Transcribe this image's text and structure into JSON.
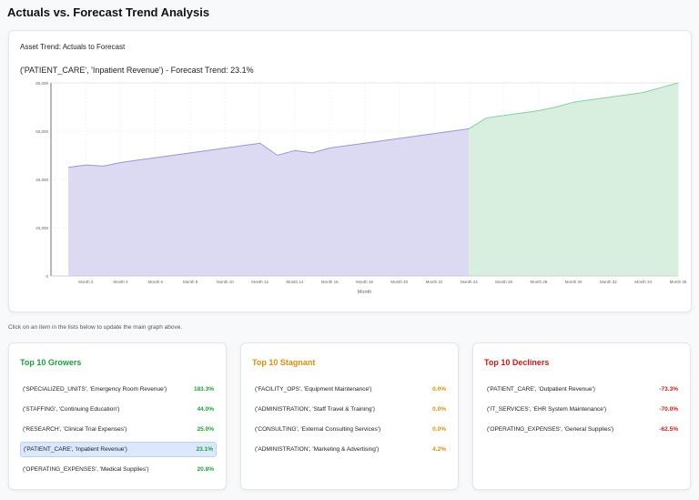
{
  "page_title": "Actuals vs. Forecast Trend Analysis",
  "chart_card": {
    "title": "Asset Trend: Actuals to Forecast",
    "plot_title": "('PATIENT_CARE', 'Inpatient Revenue') - Forecast Trend: 23.1%"
  },
  "hint": "Click on an item in the lists below to update the main graph above.",
  "colors": {
    "actual_fill": "#dcd9f3",
    "actual_line": "#9b95d6",
    "forecast_fill": "#d8efdf",
    "forecast_line": "#86cfa0",
    "grower": "#1e9e3c",
    "stagnant": "#d4900b",
    "decliner": "#c41b1b",
    "selected_bg": "#dbe8fb"
  },
  "chart_data": {
    "type": "area",
    "xlabel": "Month",
    "ylabel": "",
    "ylim": [
      0,
      80000
    ],
    "yticks": [
      0,
      20000,
      40000,
      60000,
      80000
    ],
    "ytick_labels": [
      "0",
      "20,000",
      "40,000",
      "60,000",
      "80,000"
    ],
    "x_tick_labels": [
      "Month 2",
      "Month 4",
      "Month 6",
      "Month 8",
      "Month 10",
      "Month 12",
      "Month 14",
      "Month 16",
      "Month 18",
      "Month 20",
      "Month 22",
      "Month 24",
      "Month 26",
      "Month 28",
      "Month 30",
      "Month 32",
      "Month 34",
      "Month 36"
    ],
    "grid": true,
    "series": [
      {
        "x": [
          1,
          2,
          3,
          4,
          5,
          6,
          7,
          8,
          9,
          10,
          11,
          12,
          12.5,
          13,
          14,
          15,
          16,
          17,
          18,
          19,
          20,
          21,
          22,
          23,
          24
        ],
        "values": [
          45000,
          46000,
          45500,
          47000,
          48000,
          49000,
          50000,
          51000,
          52000,
          53000,
          54000,
          55000,
          52500,
          50000,
          52000,
          51000,
          53000,
          54000,
          55000,
          56000,
          57000,
          58000,
          59000,
          60000,
          61000
        ]
      },
      {
        "x": [
          24,
          25,
          26,
          27,
          28,
          29,
          30,
          31,
          32,
          33,
          34,
          35,
          36
        ],
        "values": [
          61000,
          65500,
          66500,
          67500,
          68500,
          70000,
          72000,
          73000,
          74000,
          75000,
          76000,
          78000,
          80000
        ]
      }
    ]
  },
  "lists": {
    "growers": {
      "title": "Top 10 Growers",
      "items": [
        {
          "label": "('SPECIALIZED_UNITS', 'Emergency Room Revenue')",
          "pct": "183.3%"
        },
        {
          "label": "('STAFFING', 'Continuing Education')",
          "pct": "44.0%"
        },
        {
          "label": "('RESEARCH', 'Clinical Trial Expenses')",
          "pct": "25.0%"
        },
        {
          "label": "('PATIENT_CARE', 'Inpatient Revenue')",
          "pct": "23.1%"
        },
        {
          "label": "('OPERATING_EXPENSES', 'Medical Supplies')",
          "pct": "20.8%"
        }
      ]
    },
    "stagnant": {
      "title": "Top 10 Stagnant",
      "items": [
        {
          "label": "('FACILITY_OPS', 'Equipment Maintenance')",
          "pct": "0.0%"
        },
        {
          "label": "('ADMINISTRATION', 'Staff Travel & Training')",
          "pct": "0.0%"
        },
        {
          "label": "('CONSULTING', 'External Consulting Services')",
          "pct": "0.0%"
        },
        {
          "label": "('ADMINISTRATION', 'Marketing & Advertising')",
          "pct": "4.2%"
        }
      ]
    },
    "decliners": {
      "title": "Top 10 Decliners",
      "items": [
        {
          "label": "('PATIENT_CARE', 'Outpatient Revenue')",
          "pct": "-73.3%"
        },
        {
          "label": "('IT_SERVICES', 'EHR System Maintenance')",
          "pct": "-70.0%"
        },
        {
          "label": "('OPERATING_EXPENSES', 'General Supplies')",
          "pct": "-62.5%"
        }
      ]
    }
  }
}
